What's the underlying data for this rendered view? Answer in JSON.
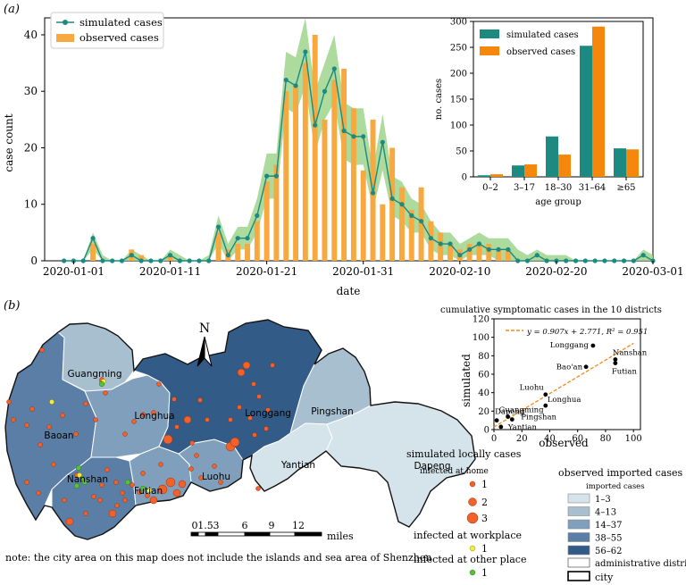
{
  "panel_a": {
    "label": "(a)",
    "chart_data": [
      {
        "type": "bar",
        "title": "",
        "xlabel": "date",
        "ylabel": "case count",
        "ylim": [
          0,
          43
        ],
        "yticks": [
          0,
          10,
          20,
          30,
          40
        ],
        "legend": [
          "simulated cases",
          "observed cases"
        ],
        "legend_position": "top-left",
        "xticks": [
          "2020-01-01",
          "2020-01-11",
          "2020-01-21",
          "2020-01-31",
          "2020-02-10",
          "2020-02-20",
          "2020-03-01"
        ],
        "start_offset_days": -1,
        "observed": [
          0,
          0,
          0,
          3,
          0,
          0,
          0,
          2,
          1,
          0,
          0,
          1,
          0,
          0,
          0,
          0,
          5,
          2,
          3,
          3,
          7,
          14,
          17,
          30,
          31,
          35,
          40,
          25,
          32,
          34,
          27,
          16,
          25,
          10,
          20,
          13,
          9,
          13,
          7,
          5,
          3,
          2,
          3,
          3,
          3,
          2,
          2,
          0,
          0,
          0,
          0,
          0,
          0,
          0,
          0,
          0,
          0,
          0,
          0,
          0,
          0,
          0
        ],
        "simulated": [
          0,
          0,
          0,
          4,
          0,
          0,
          0,
          1,
          0,
          0,
          0,
          1,
          0,
          0,
          0,
          0,
          6,
          1,
          4,
          4,
          8,
          15,
          15,
          32,
          31,
          37,
          24,
          30,
          34,
          23,
          22,
          22,
          12,
          21,
          11,
          10,
          8,
          7,
          4,
          3,
          3,
          1,
          2,
          3,
          2,
          2,
          2,
          0,
          0,
          1,
          0,
          0,
          0,
          0,
          0,
          0,
          0,
          0,
          0,
          0,
          1,
          0
        ],
        "band_low": [
          0,
          0,
          0,
          2,
          0,
          0,
          0,
          0,
          0,
          0,
          0,
          0,
          0,
          0,
          0,
          0,
          3,
          0,
          2,
          2,
          5,
          11,
          11,
          27,
          26,
          31,
          19,
          25,
          28,
          18,
          17,
          17,
          9,
          16,
          8,
          7,
          5,
          5,
          2,
          1,
          1,
          0,
          1,
          1,
          1,
          0,
          0,
          0,
          0,
          0,
          0,
          0,
          0,
          0,
          0,
          0,
          0,
          0,
          0,
          0,
          0,
          0
        ],
        "band_high": [
          0,
          0,
          0,
          5,
          1,
          0,
          0,
          2,
          1,
          0,
          0,
          2,
          1,
          0,
          0,
          1,
          8,
          3,
          6,
          6,
          11,
          19,
          19,
          37,
          36,
          43,
          30,
          35,
          40,
          28,
          27,
          27,
          16,
          26,
          15,
          14,
          11,
          10,
          7,
          5,
          5,
          3,
          4,
          5,
          4,
          4,
          4,
          2,
          1,
          2,
          1,
          1,
          1,
          0,
          0,
          0,
          0,
          0,
          0,
          0,
          2,
          1
        ]
      },
      {
        "type": "bar",
        "title": "",
        "xlabel": "age group",
        "ylabel": "no. cases",
        "ylim": [
          0,
          300
        ],
        "yticks": [
          0,
          50,
          100,
          150,
          200,
          250,
          300
        ],
        "categories": [
          "0–2",
          "3–17",
          "18–30",
          "31–64",
          "≥65"
        ],
        "series": [
          {
            "name": "simulated cases",
            "values": [
              3,
              22,
              78,
              253,
              55
            ]
          },
          {
            "name": "observed cases",
            "values": [
              5,
              24,
              43,
              290,
              53
            ]
          }
        ],
        "legend_position": "top-left"
      }
    ]
  },
  "panel_b": {
    "label": "(b)",
    "north": "N",
    "districts": [
      "Guangming",
      "Longhua",
      "Baoan",
      "Nanshan",
      "Futian",
      "Luohu",
      "Longgang",
      "Pingshan",
      "Yantian",
      "Dapeng"
    ],
    "scale": {
      "ticks": [
        "0",
        "1.5",
        "3",
        "6",
        "9",
        "12"
      ],
      "unit": "miles"
    },
    "note": "note: the city area on this map does not include the islands and sea area of Shenzhen",
    "legend_local": {
      "title": "simulated locally cases",
      "home": "infected at home",
      "home_items": [
        "1",
        "2",
        "3"
      ],
      "workplace": "infected at workplace",
      "workplace_item": "1",
      "other": "infected at other place",
      "other_item": "1"
    },
    "legend_imported": {
      "title": "observed imported cases",
      "subtitle": "imported cases",
      "bins": [
        "1–3",
        "4–13",
        "14–37",
        "38–55",
        "56–62"
      ],
      "admin": "administrative district",
      "city": "city"
    },
    "colors": {
      "c1": "#d5e3ea",
      "c2": "#a8bfd0",
      "c3": "#7f9fbd",
      "c4": "#5a7ea6",
      "c5": "#325b87",
      "home": "#f0622a",
      "work": "#f2ec3c",
      "other": "#58c03c"
    },
    "chart_data": {
      "type": "scatter",
      "title": "cumulative symptomatic cases in the 10 districts",
      "xlabel": "observed",
      "ylabel": "simulated",
      "xlim": [
        0,
        105
      ],
      "ylim": [
        0,
        120
      ],
      "xticks": [
        0,
        20,
        40,
        60,
        80,
        100
      ],
      "yticks": [
        0,
        20,
        40,
        60,
        80,
        100,
        120
      ],
      "fit_label": "y = 0.907x + 2.771, R² = 0.951",
      "fit": {
        "slope": 0.907,
        "intercept": 2.771
      },
      "points": [
        {
          "name": "Longgang",
          "x": 71,
          "y": 91
        },
        {
          "name": "Nanshan",
          "x": 87,
          "y": 76
        },
        {
          "name": "Futian",
          "x": 87,
          "y": 72
        },
        {
          "name": "Bao'an",
          "x": 66,
          "y": 68
        },
        {
          "name": "Luohu",
          "x": 37,
          "y": 38
        },
        {
          "name": "Longhua",
          "x": 37,
          "y": 26
        },
        {
          "name": "Dapeng",
          "x": 2,
          "y": 10
        },
        {
          "name": "Guangming",
          "x": 10,
          "y": 14
        },
        {
          "name": "Pingshan",
          "x": 13,
          "y": 11
        },
        {
          "name": "Yantian",
          "x": 5,
          "y": 3
        }
      ]
    }
  }
}
